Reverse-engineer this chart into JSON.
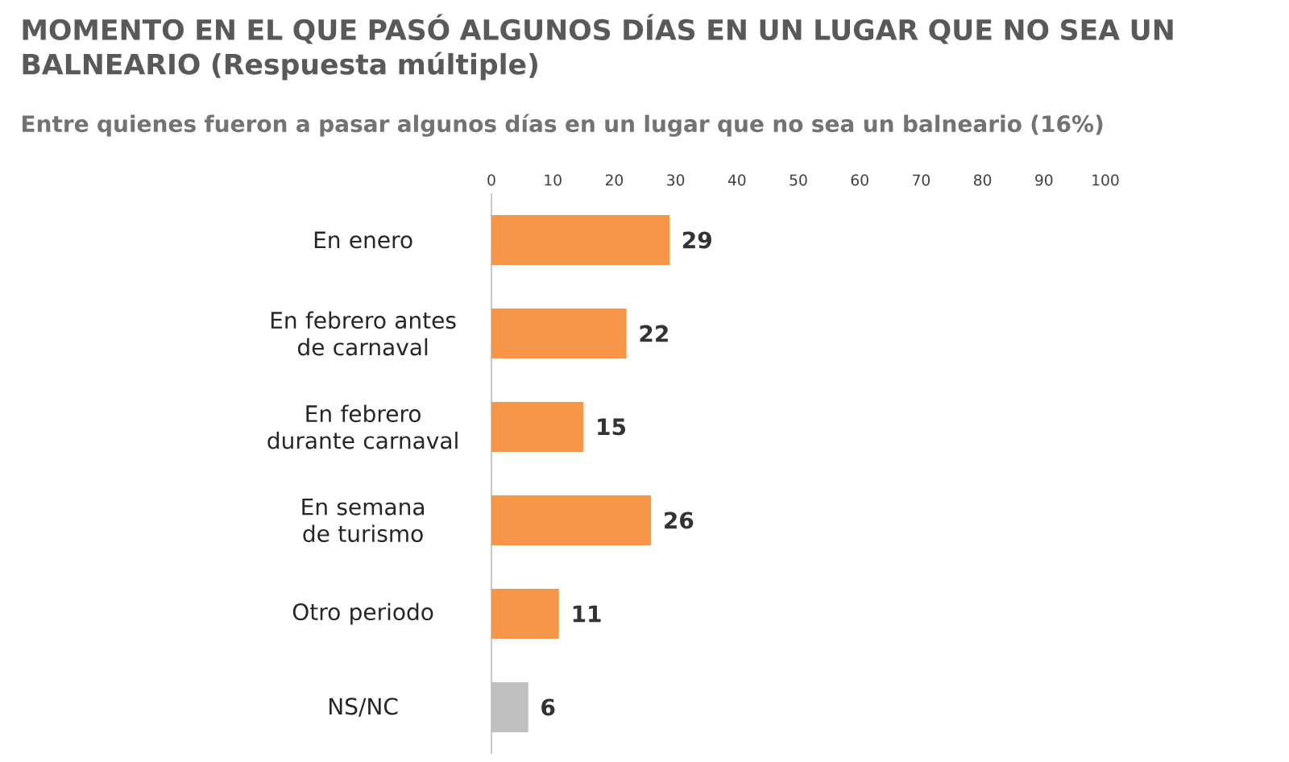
{
  "chart_data": {
    "type": "bar",
    "orientation": "horizontal",
    "title": "MOMENTO EN EL QUE PASÓ ALGUNOS DÍAS EN UN LUGAR QUE NO SEA UN BALNEARIO (Respuesta múltiple)",
    "subtitle": "Entre quienes fueron a pasar algunos días en un lugar que no sea un balneario (16%)",
    "categories": [
      "En enero",
      "En febrero antes de carnaval",
      "En febrero durante carnaval",
      "En semana de turismo",
      "Otro periodo",
      "NS/NC"
    ],
    "values": [
      29,
      22,
      15,
      26,
      11,
      6
    ],
    "colors": [
      "#f79646",
      "#f79646",
      "#f79646",
      "#f79646",
      "#f79646",
      "#bfbfbf"
    ],
    "xlim": [
      0,
      100
    ],
    "xticks": [
      0,
      10,
      20,
      30,
      40,
      50,
      60,
      70,
      80,
      90,
      100
    ],
    "data_labels": true
  }
}
